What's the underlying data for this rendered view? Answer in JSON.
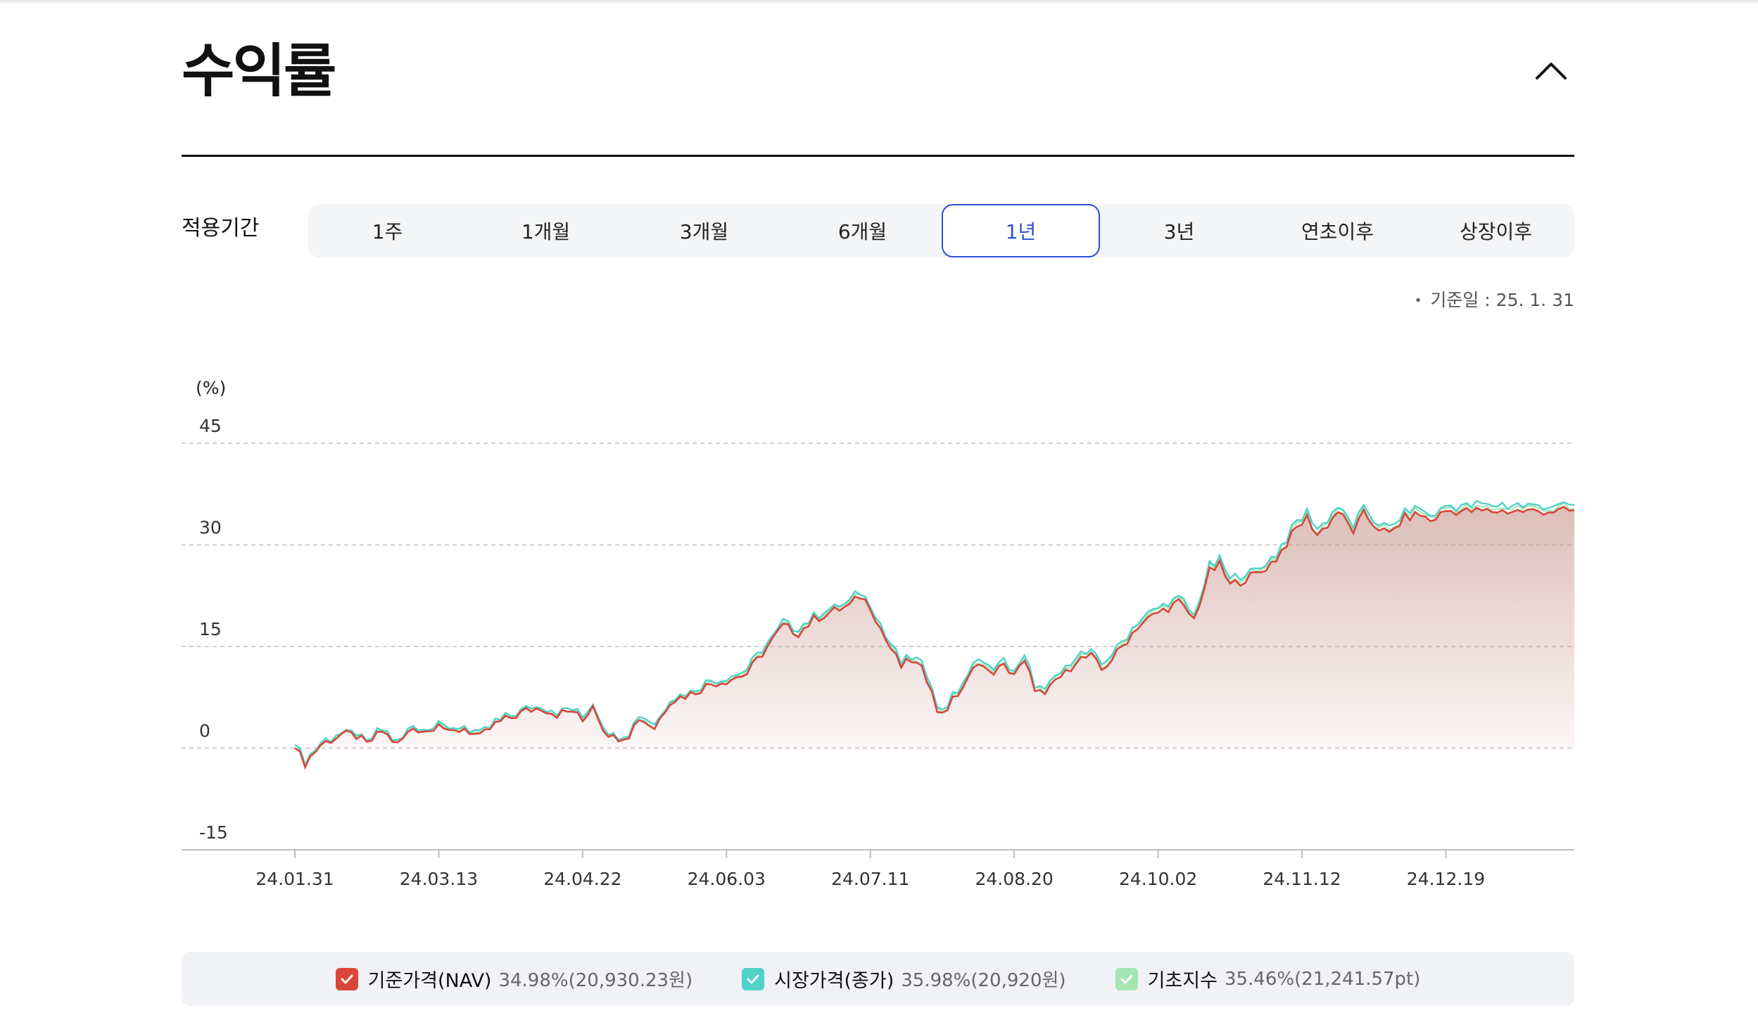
{
  "header": {
    "title": "수익률",
    "collapse_icon": "chevron-up-icon"
  },
  "period": {
    "label": "적용기간",
    "tabs": [
      "1주",
      "1개월",
      "3개월",
      "6개월",
      "1년",
      "3년",
      "연초이후",
      "상장이후"
    ],
    "active_index": 4
  },
  "base_date": "기준일 : 25. 1. 31",
  "colors": {
    "nav": "#d9463a",
    "market": "#4fd2c8",
    "index": "#a5e6b3",
    "accent": "#2d4fd3",
    "fill_top": "#c9978d"
  },
  "chart_data": {
    "type": "area",
    "unit_label": "(%)",
    "ylim": [
      -15,
      45
    ],
    "yticks": [
      45,
      30,
      15,
      0,
      -15
    ],
    "grid": true,
    "x_tick_labels": [
      "24.01.31",
      "24.03.13",
      "24.04.22",
      "24.06.03",
      "24.07.11",
      "24.08.20",
      "24.10.02",
      "24.11.12",
      "24.12.19"
    ],
    "x_tick_positions": [
      0,
      28,
      56,
      84,
      112,
      140,
      168,
      196,
      224
    ],
    "x_count": 250,
    "series": [
      {
        "name": "기준가격(NAV)",
        "color": "#d9463a",
        "anchors": [
          [
            0,
            0
          ],
          [
            2,
            -2.2
          ],
          [
            5,
            0.5
          ],
          [
            9,
            2
          ],
          [
            12,
            1.8
          ],
          [
            14,
            0.5
          ],
          [
            17,
            2.5
          ],
          [
            20,
            0.5
          ],
          [
            23,
            3
          ],
          [
            26,
            2.5
          ],
          [
            28,
            4
          ],
          [
            30,
            2
          ],
          [
            33,
            3
          ],
          [
            36,
            1.5
          ],
          [
            39,
            3.5
          ],
          [
            42,
            4.5
          ],
          [
            45,
            5.5
          ],
          [
            48,
            6
          ],
          [
            51,
            5
          ],
          [
            54,
            5.5
          ],
          [
            56,
            4
          ],
          [
            58,
            6.5
          ],
          [
            60,
            3
          ],
          [
            62,
            1.5
          ],
          [
            65,
            2
          ],
          [
            67,
            4.5
          ],
          [
            70,
            3
          ],
          [
            73,
            7
          ],
          [
            77,
            8
          ],
          [
            81,
            9.5
          ],
          [
            84,
            10
          ],
          [
            88,
            11
          ],
          [
            91,
            14
          ],
          [
            95,
            18
          ],
          [
            98,
            17
          ],
          [
            101,
            19
          ],
          [
            104,
            20
          ],
          [
            108,
            21
          ],
          [
            110,
            22.5
          ],
          [
            112,
            21
          ],
          [
            115,
            16
          ],
          [
            118,
            12
          ],
          [
            120,
            13
          ],
          [
            122,
            11.5
          ],
          [
            124,
            9
          ],
          [
            125,
            5
          ],
          [
            127,
            6
          ],
          [
            129,
            8
          ],
          [
            131,
            10
          ],
          [
            133,
            13
          ],
          [
            135,
            11
          ],
          [
            138,
            12
          ],
          [
            140,
            11
          ],
          [
            142,
            12.5
          ],
          [
            144,
            9
          ],
          [
            146,
            7.5
          ],
          [
            148,
            10
          ],
          [
            150,
            11
          ],
          [
            152,
            13
          ],
          [
            155,
            13.5
          ],
          [
            157,
            11.5
          ],
          [
            160,
            14
          ],
          [
            164,
            18
          ],
          [
            168,
            20
          ],
          [
            172,
            21.5
          ],
          [
            175,
            19
          ],
          [
            178,
            26
          ],
          [
            180,
            27
          ],
          [
            182,
            24
          ],
          [
            185,
            25
          ],
          [
            188,
            26
          ],
          [
            191,
            28
          ],
          [
            195,
            32.5
          ],
          [
            197,
            34
          ],
          [
            199,
            31.5
          ],
          [
            201,
            33
          ],
          [
            203,
            35
          ],
          [
            206,
            32
          ],
          [
            208,
            34.5
          ],
          [
            210,
            33
          ],
          [
            213,
            31.5
          ],
          [
            216,
            34
          ],
          [
            219,
            34.5
          ],
          [
            221,
            33.5
          ],
          [
            224,
            35
          ],
          [
            227,
            34.98
          ],
          [
            249,
            34.98
          ]
        ],
        "final_value": 34.98,
        "legend_value": "34.98%(20,930.23원)"
      },
      {
        "name": "시장가격(종가)",
        "color": "#4fd2c8",
        "offset_from_nav": 0.9,
        "final_value": 35.98,
        "legend_value": "35.98%(20,920원)"
      },
      {
        "name": "기초지수",
        "color": "#a5e6b3",
        "offset_from_nav": 0.45,
        "final_value": 35.46,
        "legend_value": "35.46%(21,241.57pt)"
      }
    ]
  }
}
